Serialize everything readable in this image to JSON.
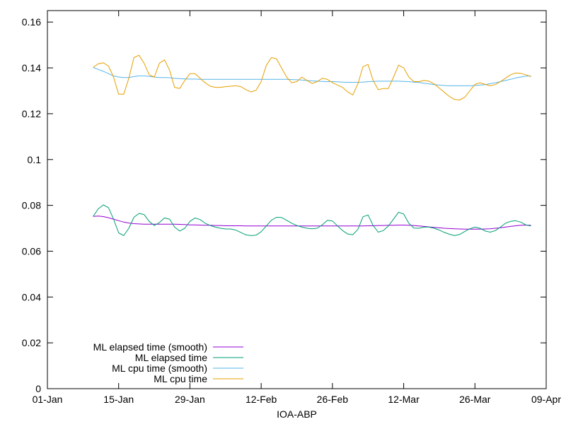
{
  "chart_data": {
    "type": "line",
    "title": "",
    "xlabel": "IOA-ABP",
    "ylabel": "",
    "xlim": [
      "01-Jan",
      "09-Apr"
    ],
    "ylim": [
      0,
      0.165
    ],
    "x_ticks": [
      "01-Jan",
      "15-Jan",
      "29-Jan",
      "12-Feb",
      "26-Feb",
      "12-Mar",
      "26-Mar",
      "09-Apr"
    ],
    "y_ticks": [
      "0",
      "0.02",
      "0.04",
      "0.06",
      "0.08",
      "0.1",
      "0.12",
      "0.14",
      "0.16"
    ],
    "grid": false,
    "legend_position": "bottom-left",
    "x": [
      "10-Jan",
      "11-Jan",
      "12-Jan",
      "13-Jan",
      "14-Jan",
      "15-Jan",
      "16-Jan",
      "17-Jan",
      "18-Jan",
      "19-Jan",
      "20-Jan",
      "21-Jan",
      "22-Jan",
      "23-Jan",
      "24-Jan",
      "25-Jan",
      "26-Jan",
      "27-Jan",
      "28-Jan",
      "29-Jan",
      "30-Jan",
      "31-Jan",
      "01-Feb",
      "02-Feb",
      "03-Feb",
      "04-Feb",
      "05-Feb",
      "06-Feb",
      "07-Feb",
      "08-Feb",
      "09-Feb",
      "10-Feb",
      "11-Feb",
      "12-Feb",
      "13-Feb",
      "14-Feb",
      "15-Feb",
      "16-Feb",
      "17-Feb",
      "18-Feb",
      "19-Feb",
      "20-Feb",
      "21-Feb",
      "22-Feb",
      "23-Feb",
      "24-Feb",
      "25-Feb",
      "26-Feb",
      "27-Feb",
      "28-Feb",
      "01-Mar",
      "02-Mar",
      "03-Mar",
      "04-Mar",
      "05-Mar",
      "06-Mar",
      "07-Mar",
      "08-Mar",
      "09-Mar",
      "10-Mar",
      "11-Mar",
      "12-Mar",
      "13-Mar",
      "14-Mar",
      "15-Mar",
      "16-Mar",
      "17-Mar",
      "18-Mar",
      "19-Mar",
      "20-Mar",
      "21-Mar",
      "22-Mar",
      "23-Mar",
      "24-Mar",
      "25-Mar",
      "26-Mar",
      "27-Mar",
      "28-Mar",
      "29-Mar",
      "30-Mar",
      "31-Mar",
      "01-Apr",
      "02-Apr",
      "03-Apr",
      "04-Apr",
      "05-Apr",
      "06-Apr"
    ],
    "series": [
      {
        "name": "ML elapsed time (smooth)",
        "color": "#9400d3",
        "values": [
          0.0752,
          0.0753,
          0.0751,
          0.0746,
          0.074,
          0.0733,
          0.0727,
          0.0723,
          0.072,
          0.0719,
          0.0718,
          0.0718,
          0.0718,
          0.0718,
          0.0718,
          0.0718,
          0.0718,
          0.0717,
          0.0716,
          0.0715,
          0.0715,
          0.0714,
          0.0713,
          0.0713,
          0.0712,
          0.0712,
          0.0711,
          0.0711,
          0.0711,
          0.0711,
          0.071,
          0.071,
          0.071,
          0.071,
          0.071,
          0.071,
          0.071,
          0.071,
          0.071,
          0.071,
          0.071,
          0.071,
          0.071,
          0.071,
          0.071,
          0.071,
          0.071,
          0.071,
          0.071,
          0.071,
          0.071,
          0.071,
          0.071,
          0.071,
          0.0711,
          0.0711,
          0.0712,
          0.0712,
          0.0713,
          0.0713,
          0.0714,
          0.0714,
          0.0713,
          0.0712,
          0.071,
          0.0708,
          0.0706,
          0.0704,
          0.0702,
          0.07,
          0.0699,
          0.0698,
          0.0697,
          0.0696,
          0.0696,
          0.0696,
          0.0696,
          0.0697,
          0.0698,
          0.07,
          0.0702,
          0.0705,
          0.0708,
          0.0711,
          0.0713,
          0.0714,
          0.0713
        ]
      },
      {
        "name": "ML elapsed time",
        "color": "#009e73",
        "values": [
          0.0752,
          0.0785,
          0.0802,
          0.079,
          0.074,
          0.068,
          0.0668,
          0.07,
          0.0748,
          0.0765,
          0.076,
          0.073,
          0.0712,
          0.0725,
          0.0745,
          0.074,
          0.0705,
          0.0688,
          0.07,
          0.073,
          0.0745,
          0.0738,
          0.0722,
          0.0712,
          0.0705,
          0.07,
          0.0697,
          0.0697,
          0.0692,
          0.0682,
          0.0671,
          0.0668,
          0.067,
          0.0685,
          0.071,
          0.0735,
          0.0748,
          0.0747,
          0.0735,
          0.0722,
          0.0712,
          0.0705,
          0.07,
          0.0698,
          0.07,
          0.0715,
          0.0735,
          0.0732,
          0.071,
          0.069,
          0.0675,
          0.0672,
          0.0695,
          0.075,
          0.0758,
          0.0712,
          0.0683,
          0.069,
          0.071,
          0.074,
          0.077,
          0.0762,
          0.0722,
          0.0701,
          0.07,
          0.0705,
          0.0705,
          0.07,
          0.0692,
          0.0682,
          0.0674,
          0.0668,
          0.0673,
          0.0686,
          0.0698,
          0.0705,
          0.07,
          0.0688,
          0.0683,
          0.069,
          0.0705,
          0.0722,
          0.073,
          0.0733,
          0.0727,
          0.0715,
          0.071
        ]
      },
      {
        "name": "ML cpu time (smooth)",
        "color": "#56b4e9",
        "values": [
          0.1402,
          0.1393,
          0.1385,
          0.1375,
          0.1365,
          0.136,
          0.1358,
          0.1358,
          0.1362,
          0.1365,
          0.1365,
          0.1363,
          0.136,
          0.1358,
          0.1358,
          0.1357,
          0.1355,
          0.1353,
          0.1352,
          0.1351,
          0.1351,
          0.135,
          0.135,
          0.135,
          0.135,
          0.135,
          0.135,
          0.135,
          0.135,
          0.135,
          0.135,
          0.135,
          0.135,
          0.135,
          0.135,
          0.135,
          0.135,
          0.135,
          0.135,
          0.1349,
          0.1348,
          0.1347,
          0.1345,
          0.1343,
          0.1342,
          0.1341,
          0.134,
          0.134,
          0.1339,
          0.1338,
          0.1337,
          0.1337,
          0.1337,
          0.1338,
          0.134,
          0.1341,
          0.1342,
          0.1342,
          0.1342,
          0.1342,
          0.1342,
          0.1341,
          0.134,
          0.1338,
          0.1336,
          0.1333,
          0.133,
          0.1327,
          0.1325,
          0.1323,
          0.1322,
          0.1322,
          0.1322,
          0.1322,
          0.1322,
          0.1323,
          0.1325,
          0.1327,
          0.1331,
          0.1335,
          0.134,
          0.1345,
          0.135,
          0.1356,
          0.136,
          0.1364,
          0.1365
        ]
      },
      {
        "name": "ML cpu time",
        "color": "#e69f00",
        "values": [
          0.1402,
          0.1418,
          0.1422,
          0.1408,
          0.136,
          0.1285,
          0.1285,
          0.1355,
          0.1445,
          0.1455,
          0.142,
          0.137,
          0.136,
          0.142,
          0.1435,
          0.139,
          0.1315,
          0.131,
          0.1345,
          0.1375,
          0.1375,
          0.1355,
          0.1335,
          0.132,
          0.1315,
          0.1315,
          0.1318,
          0.132,
          0.1322,
          0.1318,
          0.1305,
          0.1295,
          0.1302,
          0.134,
          0.141,
          0.1445,
          0.144,
          0.14,
          0.136,
          0.1335,
          0.134,
          0.136,
          0.1345,
          0.1332,
          0.134,
          0.1355,
          0.135,
          0.1335,
          0.1325,
          0.1315,
          0.1295,
          0.1282,
          0.133,
          0.1405,
          0.1415,
          0.1345,
          0.1305,
          0.131,
          0.131,
          0.136,
          0.1412,
          0.14,
          0.136,
          0.134,
          0.134,
          0.1345,
          0.1342,
          0.133,
          0.1312,
          0.1293,
          0.1275,
          0.1262,
          0.126,
          0.1272,
          0.13,
          0.1328,
          0.1335,
          0.1328,
          0.1322,
          0.1327,
          0.134,
          0.1355,
          0.137,
          0.1378,
          0.1376,
          0.137,
          0.1362
        ]
      }
    ]
  }
}
